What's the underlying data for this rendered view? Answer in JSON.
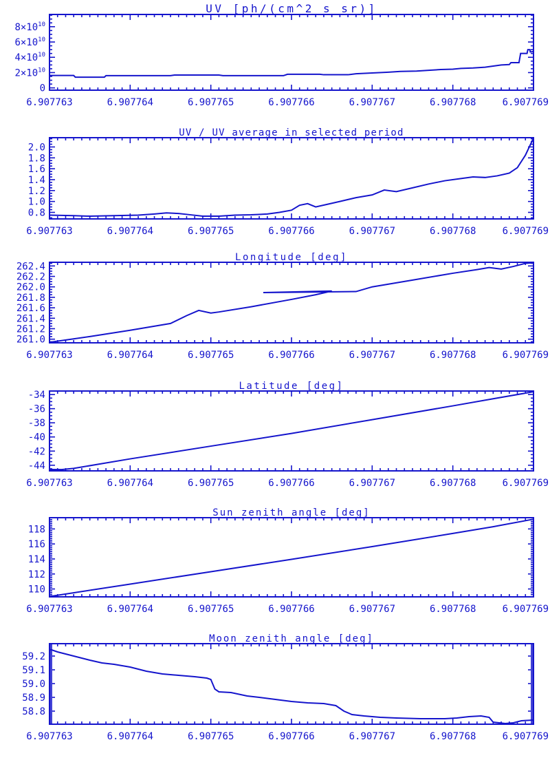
{
  "page": {
    "background": "#ffffff",
    "accent_blue": "#1414cc"
  },
  "chart_data": [
    {
      "type": "line",
      "title": "UV [ph/(cm^2 s sr)]",
      "xlabel": "",
      "ylabel": "",
      "xlim": [
        6.907763,
        6.907769
      ],
      "xtick_values": [
        6.907763,
        6.907764,
        6.907765,
        6.907766,
        6.907767,
        6.907768,
        6.907769
      ],
      "xtick_labels": [
        "6.907763",
        "6.907764",
        "6.907765",
        "6.907766",
        "6.907767",
        "6.907768",
        "6.907769"
      ],
      "x_minor_step": 1e-07,
      "ylim": [
        -3000000000.0,
        96000000000.0
      ],
      "ytick_values": [
        0,
        20000000000.0,
        40000000000.0,
        60000000000.0,
        80000000000.0
      ],
      "ytick_labels": [
        "0",
        "2×10^10",
        "4×10^10",
        "6×10^10",
        "8×10^10"
      ],
      "y_minor_step": 5000000000.0,
      "grid": false,
      "legend": "none",
      "points": [
        [
          6.907763,
          16200000000.0
        ],
        [
          6.9077633,
          16200000000.0
        ],
        [
          6.90776332,
          14000000000.0
        ],
        [
          6.90776368,
          14000000000.0
        ],
        [
          6.9077637,
          16000000000.0
        ],
        [
          6.9077645,
          16000000000.0
        ],
        [
          6.90776455,
          16800000000.0
        ],
        [
          6.9077651,
          16800000000.0
        ],
        [
          6.90776515,
          16000000000.0
        ],
        [
          6.9077659,
          16000000000.0
        ],
        [
          6.90776595,
          17800000000.0
        ],
        [
          6.90776635,
          17800000000.0
        ],
        [
          6.9077664,
          17200000000.0
        ],
        [
          6.9077667,
          17200000000.0
        ],
        [
          6.9077668,
          18500000000.0
        ],
        [
          6.907767,
          19500000000.0
        ],
        [
          6.9077672,
          20500000000.0
        ],
        [
          6.90776735,
          21500000000.0
        ],
        [
          6.90776755,
          22000000000.0
        ],
        [
          6.9077677,
          23000000000.0
        ],
        [
          6.90776785,
          24000000000.0
        ],
        [
          6.907768,
          24500000000.0
        ],
        [
          6.9077681,
          25500000000.0
        ],
        [
          6.90776825,
          26000000000.0
        ],
        [
          6.9077684,
          27000000000.0
        ],
        [
          6.9077685,
          28500000000.0
        ],
        [
          6.9077686,
          30000000000.0
        ],
        [
          6.9077687,
          30500000000.0
        ],
        [
          6.90776872,
          33000000000.0
        ],
        [
          6.90776882,
          33000000000.0
        ],
        [
          6.90776884,
          45000000000.0
        ],
        [
          6.90776892,
          45000000000.0
        ],
        [
          6.90776893,
          50000000000.0
        ],
        [
          6.907768955,
          50000000000.0
        ],
        [
          6.90776896,
          47000000000.0
        ],
        [
          6.907769,
          47500000000.0
        ]
      ]
    },
    {
      "type": "line",
      "title": "UV / UV average in selected period",
      "xlabel": "",
      "ylabel": "",
      "xlim": [
        6.907763,
        6.907769
      ],
      "xtick_values": [
        6.907763,
        6.907764,
        6.907765,
        6.907766,
        6.907767,
        6.907768,
        6.907769
      ],
      "xtick_labels": [
        "6.907763",
        "6.907764",
        "6.907765",
        "6.907766",
        "6.907767",
        "6.907768",
        "6.907769"
      ],
      "x_minor_step": 1e-07,
      "ylim": [
        0.68,
        2.17
      ],
      "ytick_values": [
        0.8,
        1.0,
        1.2,
        1.4,
        1.6,
        1.8,
        2.0
      ],
      "ytick_labels": [
        "0.8",
        "1.0",
        "1.2",
        "1.4",
        "1.6",
        "1.8",
        "2.0"
      ],
      "y_minor_step": 0.05,
      "grid": false,
      "legend": "none",
      "points": [
        [
          6.907763,
          0.75
        ],
        [
          6.9077633,
          0.74
        ],
        [
          6.9077635,
          0.73
        ],
        [
          6.9077638,
          0.74
        ],
        [
          6.9077641,
          0.75
        ],
        [
          6.9077643,
          0.77
        ],
        [
          6.90776445,
          0.79
        ],
        [
          6.9077646,
          0.78
        ],
        [
          6.90776475,
          0.755
        ],
        [
          6.9077649,
          0.73
        ],
        [
          6.9077651,
          0.73
        ],
        [
          6.9077653,
          0.75
        ],
        [
          6.9077655,
          0.755
        ],
        [
          6.9077657,
          0.77
        ],
        [
          6.90776585,
          0.8
        ],
        [
          6.907766,
          0.84
        ],
        [
          6.9077661,
          0.93
        ],
        [
          6.9077662,
          0.96
        ],
        [
          6.9077663,
          0.9
        ],
        [
          6.90776645,
          0.95
        ],
        [
          6.9077666,
          1.0
        ],
        [
          6.9077668,
          1.07
        ],
        [
          6.907767,
          1.12
        ],
        [
          6.90776715,
          1.21
        ],
        [
          6.9077673,
          1.18
        ],
        [
          6.9077675,
          1.25
        ],
        [
          6.9077677,
          1.32
        ],
        [
          6.9077679,
          1.38
        ],
        [
          6.9077681,
          1.42
        ],
        [
          6.90776825,
          1.45
        ],
        [
          6.9077684,
          1.44
        ],
        [
          6.90776855,
          1.47
        ],
        [
          6.9077687,
          1.52
        ],
        [
          6.9077688,
          1.62
        ],
        [
          6.9077689,
          1.85
        ],
        [
          6.90776897,
          2.07
        ],
        [
          6.907769,
          2.16
        ]
      ]
    },
    {
      "type": "line",
      "title": "Longitude [deg]",
      "xlabel": "",
      "ylabel": "",
      "xlim": [
        6.907763,
        6.907769
      ],
      "xtick_values": [
        6.907763,
        6.907764,
        6.907765,
        6.907766,
        6.907767,
        6.907768,
        6.907769
      ],
      "xtick_labels": [
        "6.907763",
        "6.907764",
        "6.907765",
        "6.907766",
        "6.907767",
        "6.907768",
        "6.907769"
      ],
      "x_minor_step": 1e-07,
      "ylim": [
        260.93,
        262.47
      ],
      "ytick_values": [
        261.0,
        261.2,
        261.4,
        261.6,
        261.8,
        262.0,
        262.2,
        262.4
      ],
      "ytick_labels": [
        "261.0",
        "261.2",
        "261.4",
        "261.6",
        "261.8",
        "262.0",
        "262.2",
        "262.4"
      ],
      "y_minor_step": 0.05,
      "grid": false,
      "legend": "none",
      "points": [
        [
          6.907763,
          260.94
        ],
        [
          6.9077635,
          261.05
        ],
        [
          6.907764,
          261.17
        ],
        [
          6.9077645,
          261.3
        ],
        [
          6.9077647,
          261.45
        ],
        [
          6.90776485,
          261.55
        ],
        [
          6.907765,
          261.5
        ],
        [
          6.9077651,
          261.52
        ],
        [
          6.9077655,
          261.62
        ],
        [
          6.907766,
          261.76
        ],
        [
          6.9077663,
          261.85
        ],
        [
          6.9077665,
          261.92
        ],
        [
          6.90776565,
          261.89
        ],
        [
          6.9077668,
          261.91
        ],
        [
          6.907767,
          262.0
        ],
        [
          6.9077675,
          262.13
        ],
        [
          6.907768,
          262.26
        ],
        [
          6.9077683,
          262.33
        ],
        [
          6.90776845,
          262.37
        ],
        [
          6.9077686,
          262.34
        ],
        [
          6.90776875,
          262.39
        ],
        [
          6.9077689,
          262.45
        ],
        [
          6.907769,
          262.46
        ]
      ]
    },
    {
      "type": "line",
      "title": "Latitude [deg]",
      "xlabel": "",
      "ylabel": "",
      "xlim": [
        6.907763,
        6.907769
      ],
      "xtick_values": [
        6.907763,
        6.907764,
        6.907765,
        6.907766,
        6.907767,
        6.907768,
        6.907769
      ],
      "xtick_labels": [
        "6.907763",
        "6.907764",
        "6.907765",
        "6.907766",
        "6.907767",
        "6.907768",
        "6.907769"
      ],
      "x_minor_step": 1e-07,
      "ylim": [
        -44.8,
        -33.5
      ],
      "ytick_values": [
        -44,
        -42,
        -40,
        -38,
        -36,
        -34
      ],
      "ytick_labels": [
        "-44",
        "-42",
        "-40",
        "-38",
        "-36",
        "-34"
      ],
      "y_minor_step": 0.5,
      "grid": false,
      "legend": "none",
      "points": [
        [
          6.907763,
          -44.6
        ],
        [
          6.90776315,
          -44.62
        ],
        [
          6.9077633,
          -44.45
        ],
        [
          6.907764,
          -43.1
        ],
        [
          6.907765,
          -41.3
        ],
        [
          6.907766,
          -39.5
        ],
        [
          6.907767,
          -37.55
        ],
        [
          6.907768,
          -35.6
        ],
        [
          6.9077685,
          -34.6
        ],
        [
          6.907769,
          -33.6
        ]
      ]
    },
    {
      "type": "line",
      "title": "Sun zenith angle [deg]",
      "xlabel": "",
      "ylabel": "",
      "xlim": [
        6.907763,
        6.907769
      ],
      "xtick_values": [
        6.907763,
        6.907764,
        6.907765,
        6.907766,
        6.907767,
        6.907768,
        6.907769
      ],
      "xtick_labels": [
        "6.907763",
        "6.907764",
        "6.907765",
        "6.907766",
        "6.907767",
        "6.907768",
        "6.907769"
      ],
      "x_minor_step": 1e-07,
      "ylim": [
        108.95,
        119.5
      ],
      "ytick_values": [
        110,
        112,
        114,
        116,
        118
      ],
      "ytick_labels": [
        "110",
        "112",
        "114",
        "116",
        "118"
      ],
      "y_minor_step": 0.25,
      "grid": false,
      "legend": "none",
      "points": [
        [
          6.907763,
          109.0
        ],
        [
          6.907764,
          110.65
        ],
        [
          6.907765,
          112.3
        ],
        [
          6.907766,
          113.95
        ],
        [
          6.907767,
          115.65
        ],
        [
          6.907768,
          117.4
        ],
        [
          6.9077685,
          118.3
        ],
        [
          6.907769,
          119.3
        ]
      ]
    },
    {
      "type": "line",
      "title": "Moon zenith angle [deg]",
      "xlabel": "",
      "ylabel": "",
      "xlim": [
        6.907763,
        6.907769
      ],
      "xtick_values": [
        6.907763,
        6.907764,
        6.907765,
        6.907766,
        6.907767,
        6.907768,
        6.907769
      ],
      "xtick_labels": [
        "6.907763",
        "6.907764",
        "6.907765",
        "6.907766",
        "6.907767",
        "6.907768",
        "6.907769"
      ],
      "x_minor_step": 1e-07,
      "ylim": [
        58.705,
        59.29
      ],
      "ytick_values": [
        58.8,
        58.9,
        59.0,
        59.1,
        59.2
      ],
      "ytick_labels": [
        "58.8",
        "58.9",
        "59.0",
        "59.1",
        "59.2"
      ],
      "y_minor_step": 0.01,
      "grid": false,
      "legend": "none",
      "points": [
        [
          6.907763,
          59.25
        ],
        [
          6.9077631,
          59.23
        ],
        [
          6.9077633,
          59.2
        ],
        [
          6.9077635,
          59.17
        ],
        [
          6.90776365,
          59.15
        ],
        [
          6.9077638,
          59.14
        ],
        [
          6.907764,
          59.12
        ],
        [
          6.9077642,
          59.09
        ],
        [
          6.9077644,
          59.07
        ],
        [
          6.9077646,
          59.06
        ],
        [
          6.9077648,
          59.05
        ],
        [
          6.90776495,
          59.04
        ],
        [
          6.907765,
          59.03
        ],
        [
          6.90776505,
          58.96
        ],
        [
          6.9077651,
          58.94
        ],
        [
          6.90776525,
          58.935
        ],
        [
          6.90776545,
          58.91
        ],
        [
          6.9077656,
          58.9
        ],
        [
          6.9077658,
          58.885
        ],
        [
          6.907766,
          58.87
        ],
        [
          6.9077662,
          58.86
        ],
        [
          6.9077664,
          58.855
        ],
        [
          6.90776655,
          58.84
        ],
        [
          6.90776665,
          58.8
        ],
        [
          6.90776675,
          58.775
        ],
        [
          6.9077669,
          58.765
        ],
        [
          6.9077671,
          58.755
        ],
        [
          6.9077673,
          58.75
        ],
        [
          6.9077676,
          58.745
        ],
        [
          6.9077679,
          58.745
        ],
        [
          6.90776805,
          58.75
        ],
        [
          6.9077682,
          58.76
        ],
        [
          6.90776835,
          58.765
        ],
        [
          6.90776845,
          58.755
        ],
        [
          6.9077685,
          58.72
        ],
        [
          6.90776865,
          58.71
        ],
        [
          6.90776875,
          58.715
        ],
        [
          6.90776885,
          58.73
        ],
        [
          6.907769,
          58.735
        ]
      ]
    }
  ]
}
